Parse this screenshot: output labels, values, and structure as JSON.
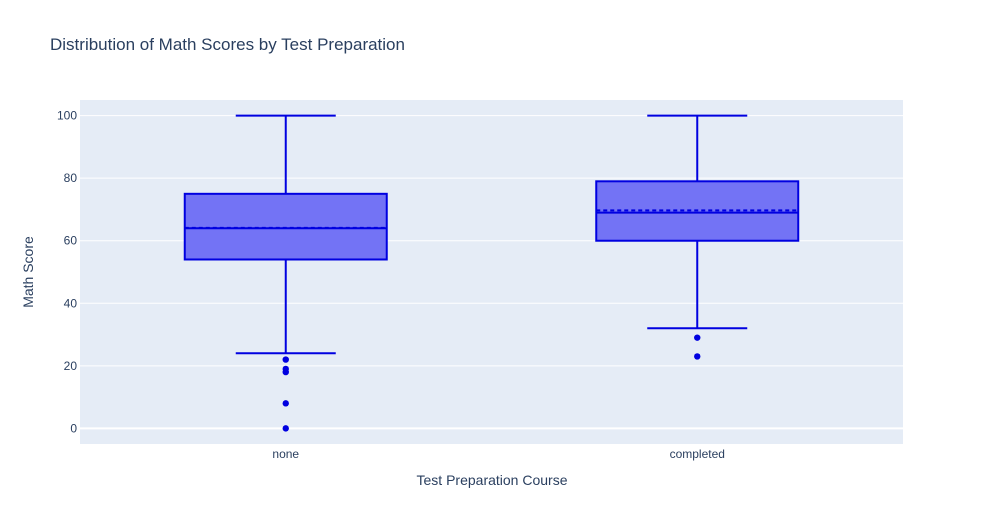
{
  "chart_data": {
    "type": "box",
    "title": "Distribution of Math Scores by Test Preparation",
    "xlabel": "Test Preparation Course",
    "ylabel": "Math Score",
    "ylim": [
      -5,
      105
    ],
    "yticks": [
      0,
      20,
      40,
      60,
      80,
      100
    ],
    "grid": true,
    "categories": [
      "none",
      "completed"
    ],
    "boxes": [
      {
        "category": "none",
        "lower_whisker": 24,
        "q1": 54,
        "median": 64,
        "mean": 64.1,
        "q3": 75,
        "upper_whisker": 100,
        "outliers": [
          22,
          19,
          18,
          8,
          0
        ]
      },
      {
        "category": "completed",
        "lower_whisker": 32,
        "q1": 60,
        "median": 69,
        "mean": 69.7,
        "q3": 79,
        "upper_whisker": 100,
        "outliers": [
          29,
          23
        ]
      }
    ],
    "colors": {
      "box_line": "#0000e0",
      "box_fill": "#7373f5",
      "outlier": "#0000e0",
      "plot_bg": "#e5ecf6",
      "grid": "#ffffff",
      "text": "#2a3f5f"
    }
  }
}
